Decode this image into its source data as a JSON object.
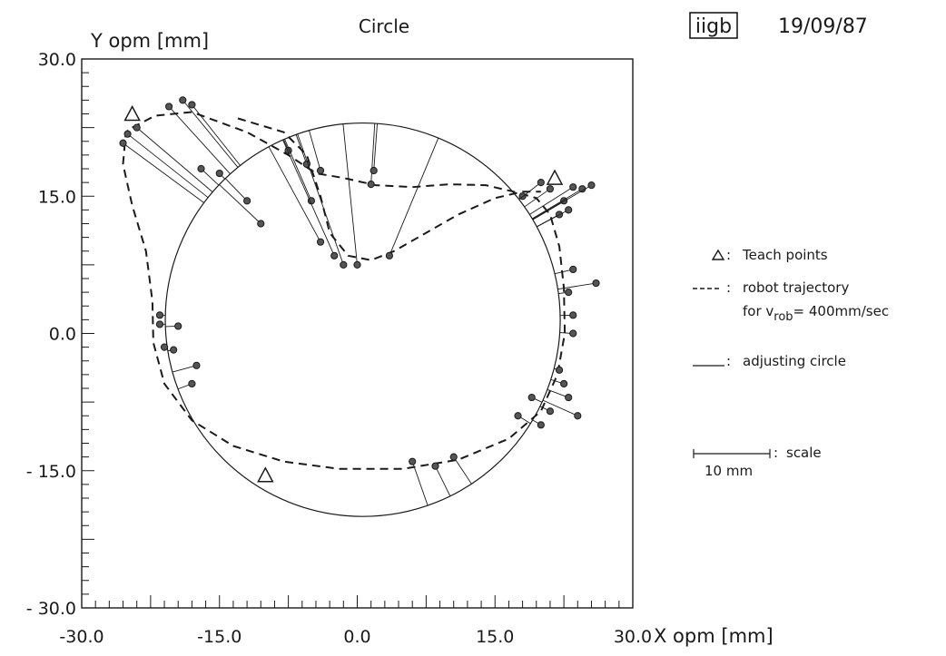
{
  "chart_data": {
    "type": "scatter",
    "title": "Circle",
    "date": "19/09/87",
    "logo_text": "iigb",
    "xlabel": "X opm [mm]",
    "ylabel": "Y opm [mm]",
    "xlim": [
      -30,
      30
    ],
    "ylim": [
      -30,
      30
    ],
    "x_ticks": [
      "-30.0",
      "-15.0",
      "0.0",
      "15.0",
      "30.0"
    ],
    "y_ticks": [
      "30.0",
      "15.0",
      "0.0",
      "- 15.0",
      "- 30.0"
    ],
    "adjusting_circle": {
      "cx": 0.6,
      "cy": 1.5,
      "r": 21.5
    },
    "teach_points": [
      {
        "x": -24.5,
        "y": 24.0
      },
      {
        "x": 21.5,
        "y": 17.0
      },
      {
        "x": -10.0,
        "y": -15.5
      }
    ],
    "trajectory": [
      [
        -24.5,
        22.5
      ],
      [
        -22.0,
        23.8
      ],
      [
        -18.0,
        24.2
      ],
      [
        -12.0,
        22.0
      ],
      [
        -7.5,
        19.5
      ],
      [
        -4.5,
        17.5
      ],
      [
        -1.5,
        17.0
      ],
      [
        2.0,
        16.2
      ],
      [
        6.0,
        16.0
      ],
      [
        10.0,
        16.3
      ],
      [
        14.0,
        16.2
      ],
      [
        17.0,
        15.5
      ],
      [
        19.5,
        14.8
      ],
      [
        21.0,
        13.0
      ],
      [
        22.0,
        9.5
      ],
      [
        22.5,
        5.0
      ],
      [
        22.6,
        0.0
      ],
      [
        21.8,
        -4.5
      ],
      [
        20.0,
        -8.5
      ],
      [
        16.5,
        -11.5
      ],
      [
        11.0,
        -13.8
      ],
      [
        5.0,
        -14.8
      ],
      [
        -2.0,
        -14.8
      ],
      [
        -8.0,
        -14.0
      ],
      [
        -13.5,
        -12.3
      ],
      [
        -18.0,
        -9.5
      ],
      [
        -21.0,
        -5.5
      ],
      [
        -22.2,
        -1.0
      ],
      [
        -22.3,
        3.5
      ],
      [
        -23.0,
        9.0
      ],
      [
        -24.5,
        14.0
      ],
      [
        -25.5,
        18.5
      ],
      [
        -25.2,
        22.0
      ],
      [
        -24.5,
        22.5
      ]
    ],
    "trajectory_inner": [
      [
        -13.0,
        23.5
      ],
      [
        -8.0,
        22.0
      ],
      [
        -5.5,
        19.5
      ],
      [
        -4.0,
        15.0
      ],
      [
        -3.0,
        11.0
      ],
      [
        -1.0,
        8.5
      ],
      [
        1.5,
        8.0
      ],
      [
        4.0,
        9.0
      ],
      [
        7.5,
        11.0
      ],
      [
        11.0,
        13.0
      ],
      [
        15.0,
        14.8
      ],
      [
        18.0,
        15.5
      ],
      [
        20.0,
        15.5
      ]
    ],
    "measured_points": [
      {
        "x": -25.5,
        "y": 20.8,
        "dx": 7.5,
        "dy": -5.5
      },
      {
        "x": -25.0,
        "y": 21.8,
        "dx": 7.0,
        "dy": -5.5
      },
      {
        "x": -24.0,
        "y": 22.5,
        "dx": 6.8,
        "dy": -5.8
      },
      {
        "x": -20.5,
        "y": 24.8,
        "dx": 3.5,
        "dy": -6.0
      },
      {
        "x": -19.0,
        "y": 25.5,
        "dx": 2.5,
        "dy": -6.5
      },
      {
        "x": -18.0,
        "y": 25.0,
        "dx": 2.0,
        "dy": -6.5
      },
      {
        "x": -17.0,
        "y": 18.0,
        "dx": 1.5,
        "dy": -2.5
      },
      {
        "x": -15.0,
        "y": 17.5,
        "dx": 0.8,
        "dy": -2.0
      },
      {
        "x": -12.0,
        "y": 14.5,
        "dx": 0.5,
        "dy": -1.5
      },
      {
        "x": -10.5,
        "y": 12.0,
        "dx": 0.0,
        "dy": -1.0
      },
      {
        "x": -7.5,
        "y": 20.0,
        "dx": -1.5,
        "dy": 3.0
      },
      {
        "x": -5.5,
        "y": 18.5,
        "dx": -1.0,
        "dy": 3.0
      },
      {
        "x": -5.0,
        "y": 14.5,
        "dx": 0.0,
        "dy": 0.0
      },
      {
        "x": -4.0,
        "y": 17.8,
        "dx": -0.5,
        "dy": 4.0
      },
      {
        "x": -4.0,
        "y": 10.0,
        "dx": 0.0,
        "dy": 0.0
      },
      {
        "x": -2.5,
        "y": 8.5,
        "dx": 0.0,
        "dy": 0.0
      },
      {
        "x": -1.5,
        "y": 7.5,
        "dx": 0.0,
        "dy": 0.0
      },
      {
        "x": 0.0,
        "y": 7.5,
        "dx": 0.0,
        "dy": 0.0
      },
      {
        "x": 1.5,
        "y": 16.3,
        "dx": 0.0,
        "dy": 0.0
      },
      {
        "x": 1.8,
        "y": 17.8,
        "dx": -0.5,
        "dy": 4.0
      },
      {
        "x": 3.5,
        "y": 8.5,
        "dx": 0.0,
        "dy": 0.0
      },
      {
        "x": 18.0,
        "y": 15.0,
        "dx": 0.0,
        "dy": 0.0
      },
      {
        "x": 20.0,
        "y": 16.5,
        "dx": 0.0,
        "dy": 0.0
      },
      {
        "x": 21.0,
        "y": 15.8,
        "dx": 0.0,
        "dy": 0.0
      },
      {
        "x": 22.5,
        "y": 14.5,
        "dx": 0.0,
        "dy": 0.0
      },
      {
        "x": 23.5,
        "y": 16.0,
        "dx": 0.0,
        "dy": 0.0
      },
      {
        "x": 24.5,
        "y": 15.8,
        "dx": 0.0,
        "dy": 0.0
      },
      {
        "x": 25.5,
        "y": 16.2,
        "dx": 0.0,
        "dy": 0.0
      },
      {
        "x": 22.0,
        "y": 13.0,
        "dx": 0.0,
        "dy": 0.0
      },
      {
        "x": 23.0,
        "y": 13.5,
        "dx": 0.0,
        "dy": 0.0
      },
      {
        "x": 23.5,
        "y": 7.0,
        "dx": 0.0,
        "dy": 0.0
      },
      {
        "x": 23.0,
        "y": 4.5,
        "dx": 0.0,
        "dy": 0.0
      },
      {
        "x": 26.0,
        "y": 5.5,
        "dx": 0.0,
        "dy": 0.0
      },
      {
        "x": 23.5,
        "y": 2.0,
        "dx": 0.0,
        "dy": 0.0
      },
      {
        "x": 23.5,
        "y": 0.0,
        "dx": 0.0,
        "dy": 0.0
      },
      {
        "x": 22.0,
        "y": -4.0,
        "dx": 0.0,
        "dy": 0.0
      },
      {
        "x": 22.5,
        "y": -5.5,
        "dx": 0.0,
        "dy": 0.0
      },
      {
        "x": 23.0,
        "y": -7.0,
        "dx": 0.0,
        "dy": 0.0
      },
      {
        "x": 24.0,
        "y": -9.0,
        "dx": 0.0,
        "dy": 0.0
      },
      {
        "x": 19.0,
        "y": -7.0,
        "dx": 0.0,
        "dy": 0.0
      },
      {
        "x": 21.0,
        "y": -8.5,
        "dx": 0.0,
        "dy": 0.0
      },
      {
        "x": 17.5,
        "y": -9.0,
        "dx": 0.0,
        "dy": 0.0
      },
      {
        "x": 20.0,
        "y": -10.0,
        "dx": 0.0,
        "dy": 0.0
      },
      {
        "x": 6.0,
        "y": -14.0,
        "dx": 0.0,
        "dy": 0.0
      },
      {
        "x": 8.5,
        "y": -14.5,
        "dx": 0.0,
        "dy": 0.0
      },
      {
        "x": 10.5,
        "y": -13.5,
        "dx": 0.0,
        "dy": 0.0
      },
      {
        "x": -21.0,
        "y": -1.5,
        "dx": 0.0,
        "dy": 0.0
      },
      {
        "x": -21.5,
        "y": 2.0,
        "dx": 0.0,
        "dy": 0.0
      },
      {
        "x": -21.5,
        "y": 1.0,
        "dx": 0.0,
        "dy": 0.0
      },
      {
        "x": -19.5,
        "y": 0.8,
        "dx": 0.0,
        "dy": 0.0
      },
      {
        "x": -17.5,
        "y": -3.5,
        "dx": 0.0,
        "dy": 0.0
      },
      {
        "x": -18.0,
        "y": -5.5,
        "dx": 0.0,
        "dy": 0.0
      },
      {
        "x": -20.0,
        "y": -1.8,
        "dx": 0.0,
        "dy": 0.0
      }
    ],
    "legend": {
      "teach_label": "Teach points",
      "trajectory_label": "robot trajectory",
      "trajectory_label2_prefix": "for  v",
      "trajectory_label2_sub": "rob",
      "trajectory_label2_suffix": "= 400mm/sec",
      "circle_label": "adjusting circle",
      "scale_label": "scale",
      "scale_value": "10 mm"
    },
    "grid": false
  }
}
